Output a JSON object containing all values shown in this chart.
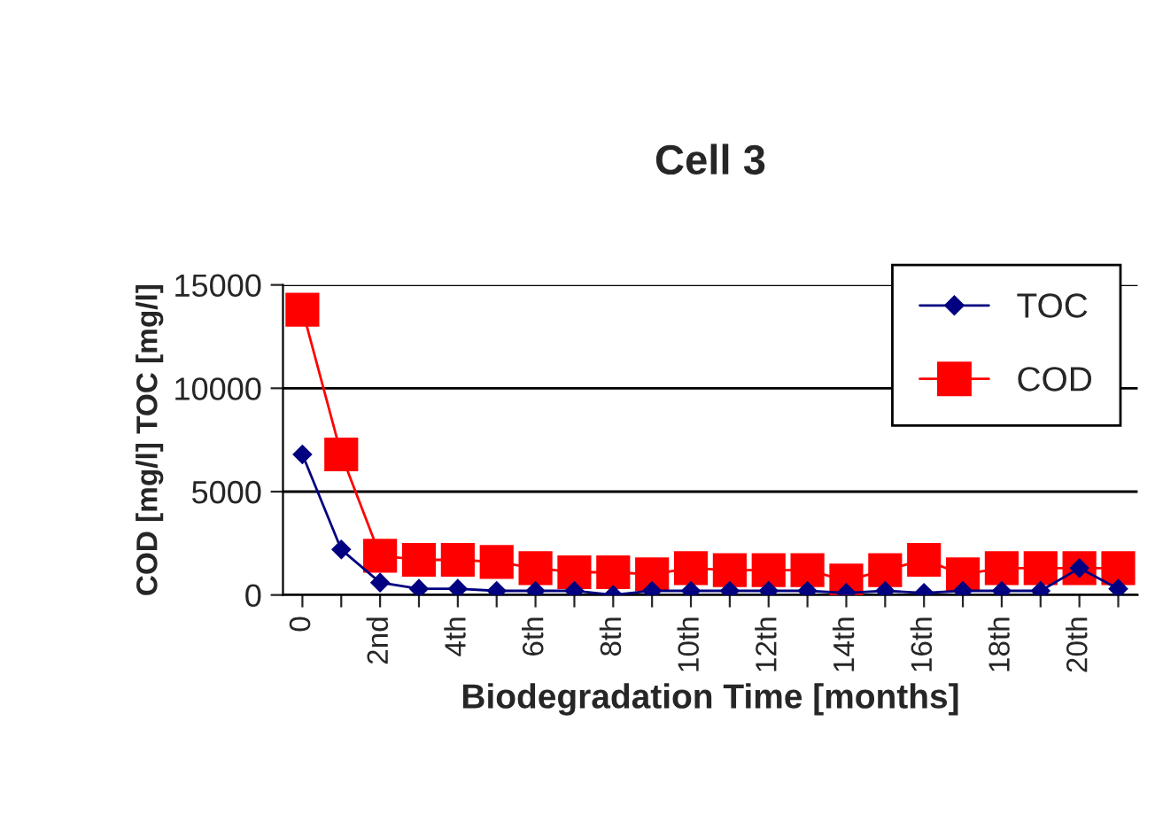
{
  "chart_data": {
    "type": "line",
    "title": "Cell 3",
    "xlabel": "Biodegradation Time [months]",
    "ylabel": "COD [mg/l] TOC [mg/l]",
    "categories": [
      "0",
      null,
      "2nd",
      null,
      "4th",
      null,
      "6th",
      null,
      "8th",
      null,
      "10th",
      null,
      "12th",
      null,
      "14th",
      null,
      "16th",
      null,
      "18th",
      null,
      "20th",
      null
    ],
    "series": [
      {
        "name": "TOC",
        "color": "#000080",
        "marker": "diamond",
        "values": [
          6800,
          2200,
          600,
          300,
          300,
          200,
          200,
          200,
          0,
          200,
          200,
          200,
          200,
          200,
          100,
          200,
          100,
          200,
          200,
          200,
          1300,
          300
        ]
      },
      {
        "name": "COD",
        "color": "#ff0000",
        "marker": "square",
        "values": [
          13800,
          6800,
          1900,
          1700,
          1700,
          1600,
          1300,
          1100,
          1100,
          1000,
          1300,
          1200,
          1200,
          1200,
          700,
          1200,
          1700,
          1000,
          1300,
          1300,
          1300,
          1300
        ]
      }
    ],
    "ylim": [
      0,
      15000
    ],
    "yticks": [
      0,
      5000,
      10000,
      15000
    ],
    "grid": "y",
    "legend": "top right"
  }
}
